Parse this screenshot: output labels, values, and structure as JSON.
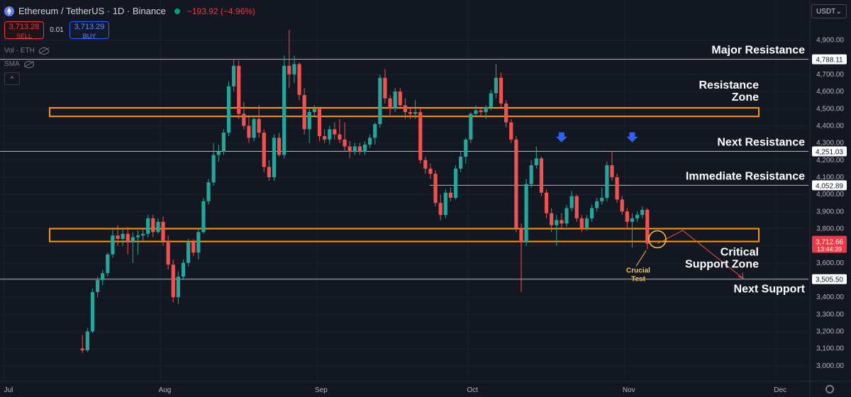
{
  "header": {
    "symbol": "Ethereum / TetherUS · 1D · Binance",
    "change": "−193.92 (−4.96%)"
  },
  "trade": {
    "sell_price": "3,713.28",
    "sell_label": "SELL",
    "spread": "0.01",
    "buy_price": "3,713.29",
    "buy_label": "BUY"
  },
  "indicators": {
    "vol": "Vol · ETH",
    "sma": "SMA"
  },
  "currency": "USDT",
  "colors": {
    "up": "#26a69a",
    "down": "#ef5350",
    "zone": "#ff9800",
    "bg": "#131722",
    "marker": "#2962ff",
    "annotation": "#f5c542"
  },
  "chart_data": {
    "type": "candlestick",
    "timeframe": "1D",
    "ylim": [
      2950,
      5010
    ],
    "y_ticks": [
      3000,
      3100,
      3200,
      3300,
      3400,
      3500,
      3600,
      3700,
      3800,
      3900,
      4000,
      4100,
      4200,
      4300,
      4400,
      4500,
      4600,
      4700,
      4800,
      4900
    ],
    "y_tick_labels": [
      "3,000.00",
      "3,100.00",
      "3,200.00",
      "3,300.00",
      "3,400.00",
      "3,500.00",
      "3,600.00",
      "3,700.00",
      "3,800.00",
      "3,900.00",
      "4,000.00",
      "4,100.00",
      "4,200.00",
      "4,300.00",
      "4,400.00",
      "4,500.00",
      "4,600.00",
      "4,700.00",
      "4,800.00",
      "4,900.00"
    ],
    "x_ticks": [
      {
        "label": "Jul",
        "day": 0
      },
      {
        "label": "Aug",
        "day": 31
      },
      {
        "label": "Sep",
        "day": 62
      },
      {
        "label": "Oct",
        "day": 92
      },
      {
        "label": "Nov",
        "day": 123
      },
      {
        "label": "Dec",
        "day": 153
      }
    ],
    "first_candle_day": 15,
    "candles": [
      [
        3100,
        3180,
        3075,
        3090
      ],
      [
        3090,
        3220,
        3080,
        3200
      ],
      [
        3200,
        3450,
        3190,
        3430
      ],
      [
        3430,
        3520,
        3400,
        3500
      ],
      [
        3500,
        3560,
        3470,
        3540
      ],
      [
        3540,
        3660,
        3520,
        3650
      ],
      [
        3650,
        3800,
        3630,
        3760
      ],
      [
        3760,
        3820,
        3700,
        3740
      ],
      [
        3740,
        3800,
        3700,
        3770
      ],
      [
        3770,
        3810,
        3650,
        3720
      ],
      [
        3720,
        3780,
        3600,
        3750
      ],
      [
        3750,
        3790,
        3650,
        3760
      ],
      [
        3760,
        3800,
        3720,
        3770
      ],
      [
        3770,
        3880,
        3750,
        3860
      ],
      [
        3860,
        3880,
        3750,
        3780
      ],
      [
        3780,
        3860,
        3770,
        3840
      ],
      [
        3840,
        3870,
        3700,
        3730
      ],
      [
        3730,
        3760,
        3560,
        3590
      ],
      [
        3590,
        3620,
        3370,
        3400
      ],
      [
        3400,
        3550,
        3360,
        3520
      ],
      [
        3520,
        3620,
        3500,
        3600
      ],
      [
        3600,
        3740,
        3580,
        3720
      ],
      [
        3720,
        3740,
        3640,
        3660
      ],
      [
        3660,
        3800,
        3620,
        3780
      ],
      [
        3780,
        3980,
        3770,
        3960
      ],
      [
        3960,
        4090,
        3940,
        4070
      ],
      [
        4070,
        4300,
        4050,
        4230
      ],
      [
        4230,
        4290,
        4190,
        4250
      ],
      [
        4250,
        4380,
        4230,
        4360
      ],
      [
        4360,
        4660,
        4340,
        4630
      ],
      [
        4630,
        4790,
        4600,
        4750
      ],
      [
        4750,
        4780,
        4440,
        4470
      ],
      [
        4470,
        4540,
        4380,
        4400
      ],
      [
        4400,
        4450,
        4300,
        4330
      ],
      [
        4330,
        4460,
        4310,
        4440
      ],
      [
        4440,
        4520,
        4330,
        4360
      ],
      [
        4360,
        4380,
        4130,
        4160
      ],
      [
        4160,
        4200,
        4080,
        4100
      ],
      [
        4100,
        4350,
        4080,
        4330
      ],
      [
        4330,
        4360,
        4220,
        4230
      ],
      [
        4230,
        4810,
        4210,
        4750
      ],
      [
        4750,
        4960,
        4620,
        4700
      ],
      [
        4700,
        4810,
        4650,
        4760
      ],
      [
        4760,
        4770,
        4550,
        4580
      ],
      [
        4580,
        4620,
        4350,
        4380
      ],
      [
        4380,
        4500,
        4300,
        4480
      ],
      [
        4480,
        4520,
        4460,
        4500
      ],
      [
        4500,
        4510,
        4310,
        4340
      ],
      [
        4340,
        4380,
        4300,
        4320
      ],
      [
        4320,
        4400,
        4290,
        4380
      ],
      [
        4380,
        4420,
        4320,
        4350
      ],
      [
        4350,
        4440,
        4300,
        4320
      ],
      [
        4320,
        4420,
        4250,
        4280
      ],
      [
        4280,
        4310,
        4210,
        4250
      ],
      [
        4250,
        4300,
        4230,
        4280
      ],
      [
        4280,
        4300,
        4230,
        4250
      ],
      [
        4250,
        4310,
        4230,
        4290
      ],
      [
        4290,
        4350,
        4270,
        4330
      ],
      [
        4330,
        4420,
        4290,
        4410
      ],
      [
        4410,
        4700,
        4390,
        4680
      ],
      [
        4680,
        4730,
        4530,
        4560
      ],
      [
        4560,
        4580,
        4450,
        4500
      ],
      [
        4500,
        4620,
        4480,
        4600
      ],
      [
        4600,
        4620,
        4500,
        4520
      ],
      [
        4520,
        4560,
        4440,
        4480
      ],
      [
        4480,
        4510,
        4440,
        4470
      ],
      [
        4470,
        4550,
        4440,
        4480
      ],
      [
        4480,
        4500,
        4180,
        4200
      ],
      [
        4200,
        4220,
        4120,
        4150
      ],
      [
        4150,
        4180,
        4090,
        4120
      ],
      [
        4120,
        4140,
        3930,
        3950
      ],
      [
        3950,
        4000,
        3850,
        3880
      ],
      [
        3880,
        4030,
        3860,
        4010
      ],
      [
        4010,
        4040,
        3960,
        3980
      ],
      [
        3980,
        4170,
        3970,
        4150
      ],
      [
        4150,
        4250,
        4130,
        4220
      ],
      [
        4220,
        4330,
        4180,
        4320
      ],
      [
        4320,
        4480,
        4300,
        4470
      ],
      [
        4470,
        4520,
        4460,
        4490
      ],
      [
        4490,
        4510,
        4460,
        4480
      ],
      [
        4480,
        4520,
        4440,
        4510
      ],
      [
        4510,
        4610,
        4490,
        4590
      ],
      [
        4590,
        4760,
        4560,
        4680
      ],
      [
        4680,
        4710,
        4510,
        4530
      ],
      [
        4530,
        4550,
        4390,
        4420
      ],
      [
        4420,
        4440,
        4300,
        4320
      ],
      [
        4320,
        4340,
        3780,
        3800
      ],
      [
        3800,
        3830,
        3430,
        3720
      ],
      [
        3720,
        4090,
        3700,
        4060
      ],
      [
        4060,
        4200,
        4040,
        4170
      ],
      [
        4170,
        4280,
        4150,
        4210
      ],
      [
        4210,
        4220,
        3990,
        4010
      ],
      [
        4010,
        4030,
        3860,
        3890
      ],
      [
        3890,
        3920,
        3780,
        3820
      ],
      [
        3820,
        3880,
        3700,
        3850
      ],
      [
        3850,
        3890,
        3800,
        3830
      ],
      [
        3830,
        3940,
        3810,
        3920
      ],
      [
        3920,
        4020,
        3900,
        3990
      ],
      [
        3990,
        4000,
        3840,
        3860
      ],
      [
        3860,
        3880,
        3780,
        3800
      ],
      [
        3800,
        3880,
        3790,
        3860
      ],
      [
        3860,
        3940,
        3840,
        3920
      ],
      [
        3920,
        3980,
        3900,
        3960
      ],
      [
        3960,
        4040,
        3940,
        3980
      ],
      [
        3980,
        4190,
        3960,
        4170
      ],
      [
        4170,
        4250,
        4080,
        4100
      ],
      [
        4100,
        4120,
        3950,
        3970
      ],
      [
        3970,
        3990,
        3880,
        3900
      ],
      [
        3900,
        3920,
        3800,
        3840
      ],
      [
        3840,
        3890,
        3690,
        3860
      ],
      [
        3860,
        3900,
        3840,
        3880
      ],
      [
        3880,
        3930,
        3860,
        3910
      ],
      [
        3910,
        3920,
        3680,
        3712.66
      ]
    ],
    "levels": [
      {
        "name": "Major Resistance",
        "price": 4788.11,
        "price_label": "4,788.11"
      },
      {
        "name": "Next Resistance",
        "price": 4251.03,
        "price_label": "4,251.03"
      },
      {
        "name": "Immediate Resistance",
        "price": 4052.89,
        "price_label": "4,052.89"
      },
      {
        "name": "Next Support",
        "price": 3505.5,
        "price_label": "3,505.50"
      }
    ],
    "zones": [
      {
        "name_lines": [
          "Resistance",
          "Zone"
        ],
        "low": 4455,
        "high": 4505
      },
      {
        "name_lines": [
          "Critical",
          "Support Zone"
        ],
        "low": 3725,
        "high": 3800
      }
    ],
    "markers": [
      {
        "type": "arrow-down",
        "candle": 95,
        "price": 4320
      },
      {
        "type": "arrow-down",
        "candle": 109,
        "price": 4320
      }
    ],
    "annotation": {
      "lines": [
        "Crucial",
        "Test"
      ],
      "candle": 114,
      "price": 3705
    },
    "projection": [
      {
        "candle": 114,
        "price": 3712
      },
      {
        "candle": 119,
        "price": 3790
      },
      {
        "candle": 131,
        "price": 3510
      }
    ],
    "last_price": {
      "label": "3,712.66",
      "countdown": "13:44:39",
      "price": 3712.66
    }
  }
}
